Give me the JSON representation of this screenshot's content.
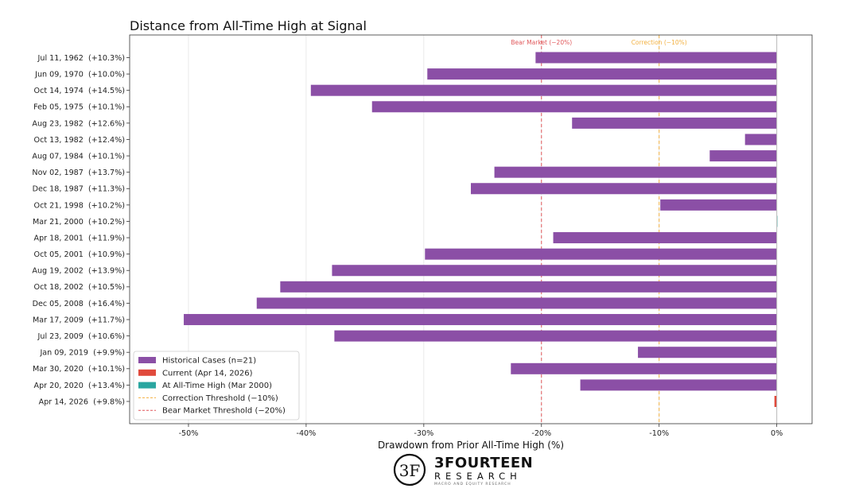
{
  "colors": {
    "historical": "#8b4fa6",
    "current": "#e04a3c",
    "ath": "#2aa6a0",
    "correction": "#f2b142",
    "bear": "#e0575a"
  },
  "chart_data": {
    "type": "bar",
    "orientation": "horizontal",
    "title": "Distance from All-Time High at Signal",
    "xlabel": "Drawdown from Prior All-Time High (%)",
    "ylabel": "",
    "xlim": [
      -55,
      3
    ],
    "xticks": [
      {
        "value": -50,
        "label": "-50%"
      },
      {
        "value": -40,
        "label": "-40%"
      },
      {
        "value": -30,
        "label": "-30%"
      },
      {
        "value": -20,
        "label": "-20%"
      },
      {
        "value": -10,
        "label": "-10%"
      },
      {
        "value": 0,
        "label": "0%"
      }
    ],
    "categories": [
      "Jul 11, 1962  (+10.3%)",
      "Jun 09, 1970  (+10.0%)",
      "Oct 14, 1974  (+14.5%)",
      "Feb 05, 1975  (+10.1%)",
      "Aug 23, 1982  (+12.6%)",
      "Oct 13, 1982  (+12.4%)",
      "Aug 07, 1984  (+10.1%)",
      "Nov 02, 1987  (+13.7%)",
      "Dec 18, 1987  (+11.3%)",
      "Oct 21, 1998  (+10.2%)",
      "Mar 21, 2000  (+10.2%)",
      "Apr 18, 2001  (+11.9%)",
      "Oct 05, 2001  (+10.9%)",
      "Aug 19, 2002  (+13.9%)",
      "Oct 18, 2002  (+10.5%)",
      "Dec 05, 2008  (+16.4%)",
      "Mar 17, 2009  (+11.7%)",
      "Jul 23, 2009  (+10.6%)",
      "Jan 09, 2019  (+9.9%)",
      "Mar 30, 2020  (+10.1%)",
      "Apr 20, 2020  (+13.4%)",
      "Apr 14, 2026  (+9.8%)"
    ],
    "values": [
      -20.5,
      -29.7,
      -39.6,
      -34.4,
      -17.4,
      -2.7,
      -5.7,
      -24.0,
      -26.0,
      -9.9,
      0.0,
      -19.0,
      -29.9,
      -37.8,
      -42.2,
      -44.2,
      -50.4,
      -37.6,
      -11.8,
      -22.6,
      -16.7,
      -0.2
    ],
    "kinds": [
      "historical",
      "historical",
      "historical",
      "historical",
      "historical",
      "historical",
      "historical",
      "historical",
      "historical",
      "historical",
      "ath",
      "historical",
      "historical",
      "historical",
      "historical",
      "historical",
      "historical",
      "historical",
      "historical",
      "historical",
      "historical",
      "current"
    ],
    "thresholds": [
      {
        "value": -20,
        "label": "Bear Market (−20%)",
        "kind": "bear"
      },
      {
        "value": -10,
        "label": "Correction (−10%)",
        "kind": "correction"
      }
    ],
    "legend": {
      "position": "lower-left",
      "entries": [
        {
          "label": "Historical Cases (n=21)",
          "kind": "historical",
          "style": "patch"
        },
        {
          "label": "Current (Apr 14, 2026)",
          "kind": "current",
          "style": "patch"
        },
        {
          "label": "At All-Time High (Mar 2000)",
          "kind": "ath",
          "style": "patch"
        },
        {
          "label": "Correction Threshold (−10%)",
          "kind": "correction",
          "style": "dashed"
        },
        {
          "label": "Bear Market Threshold (−20%)",
          "kind": "bear",
          "style": "dashed"
        }
      ]
    },
    "grid": "vertical"
  },
  "logo": {
    "mark": "3F",
    "name": "3FOURTEEN",
    "sub": "RESEARCH",
    "tagline": "MACRO AND EQUITY RESEARCH"
  }
}
